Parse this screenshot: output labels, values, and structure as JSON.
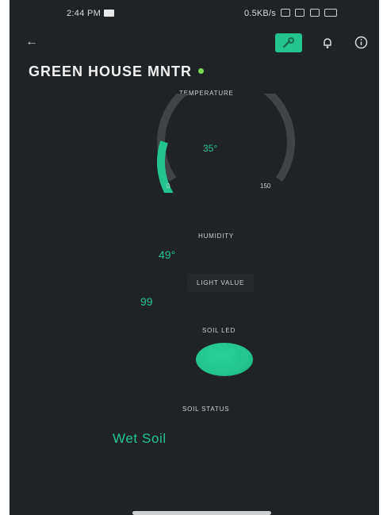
{
  "status_bar": {
    "time": "2:44 PM",
    "right_text": "0.5KB/s"
  },
  "app_bar": {
    "back_icon": "arrow-left-icon",
    "settings_icon": "wrench-icon",
    "notifications_icon": "bell-icon",
    "info_icon": "info-icon"
  },
  "header": {
    "title": "GREEN HOUSE MNTR",
    "status_color": "#7ed957"
  },
  "temperature": {
    "label": "TEMPERATURE",
    "value": "35°",
    "min": "0",
    "max": "150",
    "fraction": 0.233
  },
  "humidity": {
    "label": "HUMIDITY",
    "value": "49°"
  },
  "light": {
    "label": "LIGHT VALUE",
    "value": "99"
  },
  "soil_led": {
    "label": "SOIL LED",
    "color": "#23c48e"
  },
  "soil_status": {
    "label": "SOIL STATUS",
    "value": "Wet Soil"
  },
  "colors": {
    "accent": "#23c48e",
    "background": "#202325"
  }
}
